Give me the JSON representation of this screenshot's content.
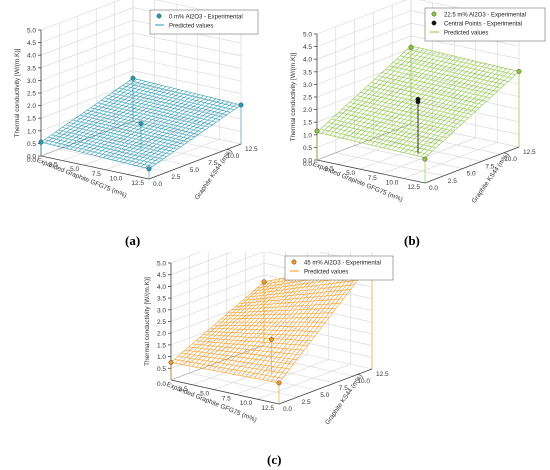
{
  "chart_data": [
    {
      "type": "surface3d",
      "panel_label": "(a)",
      "x": {
        "label": "Expanded Graphite GFG75 (m%)",
        "range": [
          0,
          12.5
        ],
        "ticks": [
          "0.0",
          "2.5",
          "5.0",
          "7.5",
          "10.0",
          "12.5"
        ]
      },
      "y": {
        "label": "Graphite KS44 (m%)",
        "range": [
          0,
          12.5
        ],
        "ticks": [
          "0.0",
          "2.5",
          "5.0",
          "7.5",
          "10.0",
          "12.5"
        ]
      },
      "z": {
        "label": "Thermal conductivity [W/(m.K)]",
        "range": [
          0,
          5
        ],
        "ticks": [
          "0.0",
          "0.5",
          "1.0",
          "1.5",
          "2.0",
          "2.5",
          "3.0",
          "3.5",
          "4.0",
          "4.5",
          "5.0"
        ]
      },
      "surface": {
        "z_corners": {
          "x0y0": 0.55,
          "x12.5y0": 0.4,
          "x0y12.5": 1.7,
          "x12.5y12.5": 1.55
        }
      },
      "series": [
        {
          "name": "0 m% Al2O3 - Experimental",
          "marker": "dot",
          "color": "#2a9bb7",
          "points": [
            {
              "x": 0,
              "y": 0,
              "z": 0.55
            },
            {
              "x": 12.5,
              "y": 0,
              "z": 0.4
            },
            {
              "x": 0,
              "y": 12.5,
              "z": 1.7
            },
            {
              "x": 12.5,
              "y": 12.5,
              "z": 1.55
            },
            {
              "x": 6.25,
              "y": 6.25,
              "z": 1.05
            }
          ]
        },
        {
          "name": "Predicted values",
          "marker": "line",
          "color": "#2a9bb7"
        }
      ],
      "mesh_color": "#2a9bb7"
    },
    {
      "type": "surface3d",
      "panel_label": "(b)",
      "x": {
        "label": "Expanded Graphite GFG75 (m%)",
        "range": [
          0,
          12.5
        ],
        "ticks": [
          "0.0",
          "2.5",
          "5.0",
          "7.5",
          "10.0",
          "12.5"
        ]
      },
      "y": {
        "label": "Graphite KS44 (m%)",
        "range": [
          0,
          12.5
        ],
        "ticks": [
          "0.0",
          "2.5",
          "5.0",
          "7.5",
          "10.0",
          "12.5"
        ]
      },
      "z": {
        "label": "Thermal conductivity [W/(m.K)]",
        "range": [
          0,
          5
        ],
        "ticks": [
          "0.0",
          "0.5",
          "1.0",
          "1.5",
          "2.0",
          "2.5",
          "3.0",
          "3.5",
          "4.0",
          "4.5",
          "5.0"
        ]
      },
      "surface": {
        "z_corners": {
          "x0y0": 1.1,
          "x12.5y0": 1.0,
          "x0y12.5": 3.1,
          "x12.5y12.5": 3.0
        }
      },
      "series": [
        {
          "name": "22.5 m% Al2O3 - Experimental",
          "marker": "dot",
          "color": "#8cc63f",
          "points": [
            {
              "x": 0,
              "y": 0,
              "z": 1.15
            },
            {
              "x": 12.5,
              "y": 0,
              "z": 0.95
            },
            {
              "x": 0,
              "y": 12.5,
              "z": 3.05
            },
            {
              "x": 12.5,
              "y": 12.5,
              "z": 3.0
            }
          ]
        },
        {
          "name": "Central Points - Experimental",
          "marker": "dot",
          "color": "#111111",
          "points": [
            {
              "x": 6.25,
              "y": 6.25,
              "z": 2.05
            },
            {
              "x": 6.25,
              "y": 6.25,
              "z": 2.15
            }
          ]
        },
        {
          "name": "Predicted values",
          "marker": "line",
          "color": "#8cc63f"
        }
      ],
      "mesh_color": "#8cc63f"
    },
    {
      "type": "surface3d",
      "panel_label": "(c)",
      "x": {
        "label": "Expanded Graphite GFG75 (m%)",
        "range": [
          0,
          12.5
        ],
        "ticks": [
          "0.0",
          "2.5",
          "5.0",
          "7.5",
          "10.0",
          "12.5"
        ]
      },
      "y": {
        "label": "Graphite KS44 (m%)",
        "range": [
          0,
          12.5
        ],
        "ticks": [
          "0.0",
          "2.5",
          "5.0",
          "7.5",
          "10.0",
          "12.5"
        ]
      },
      "z": {
        "label": "Thermal conductivity [W/(m.K)]",
        "range": [
          0,
          5
        ],
        "ticks": [
          "0.5",
          "1.0",
          "1.5",
          "2.0",
          "2.5",
          "3.0",
          "3.5",
          "4.0",
          "4.5",
          "5.0"
        ]
      },
      "surface": {
        "z_corners": {
          "x0y0": 0.75,
          "x12.5y0": 0.9,
          "x0y12.5": 2.7,
          "x12.5y12.5": 4.6
        }
      },
      "series": [
        {
          "name": "45 m% Al2O3 - Experimental",
          "marker": "dot",
          "color": "#f39a1f",
          "points": [
            {
              "x": 0,
              "y": 0,
              "z": 0.75
            },
            {
              "x": 12.5,
              "y": 0,
              "z": 0.9
            },
            {
              "x": 0,
              "y": 12.5,
              "z": 2.7
            },
            {
              "x": 12.5,
              "y": 12.5,
              "z": 4.6
            },
            {
              "x": 6.25,
              "y": 6.25,
              "z": 1.5
            }
          ]
        },
        {
          "name": "Predicted values",
          "marker": "line",
          "color": "#f39a1f"
        }
      ],
      "mesh_color": "#f39a1f"
    }
  ]
}
